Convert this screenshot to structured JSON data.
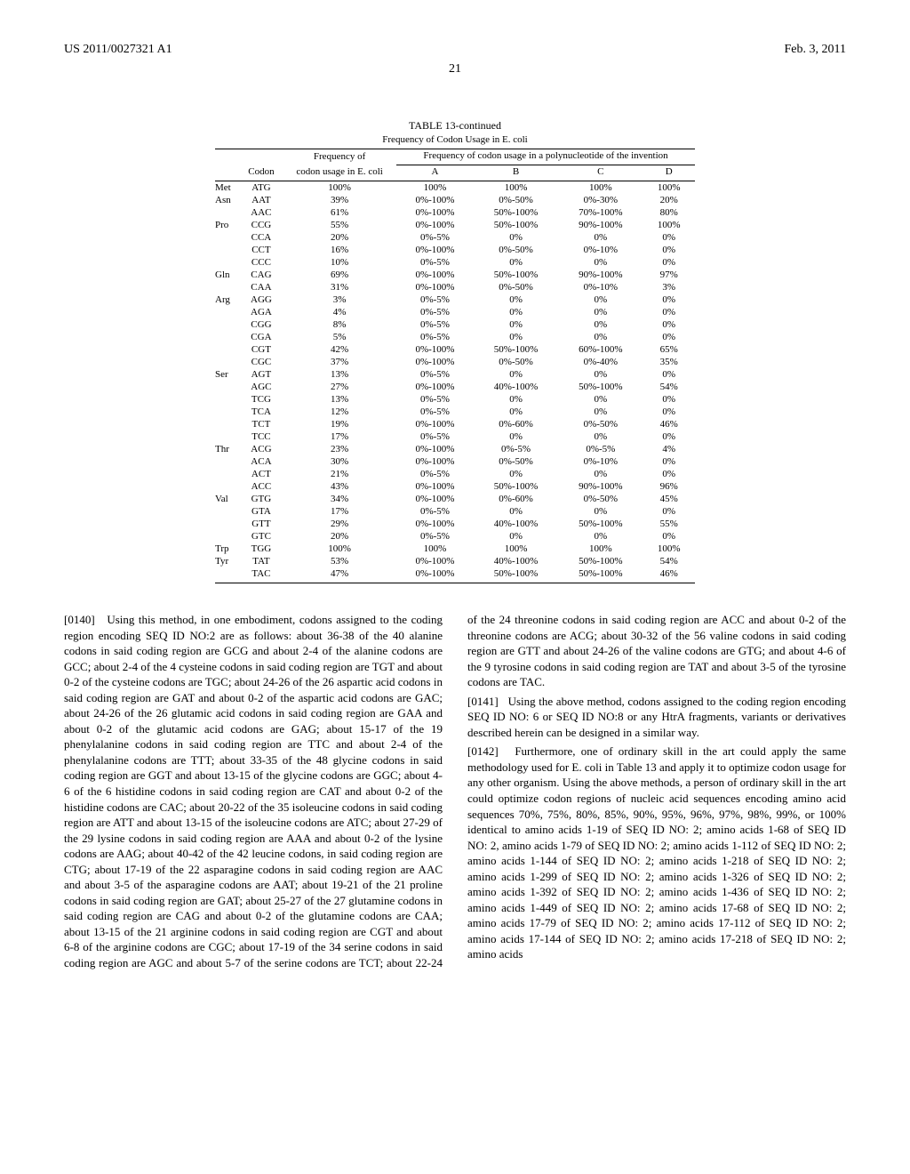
{
  "header": {
    "pub_number": "US 2011/0027321 A1",
    "date": "Feb. 3, 2011"
  },
  "page_number": "21",
  "table": {
    "caption": "TABLE 13-continued",
    "subtitle": "Frequency of Codon Usage in E. coli",
    "header1_freq_of": "Frequency of",
    "header1_pnuc": "Frequency of codon usage in a polynucleotide of the invention",
    "col_codon": "Codon",
    "col_usage": "codon usage in E. coli",
    "cols": [
      "A",
      "B",
      "C",
      "D"
    ],
    "rows": [
      {
        "aa": "Met",
        "codon": "ATG",
        "freq": "100%",
        "A": "100%",
        "B": "100%",
        "C": "100%",
        "D": "100%"
      },
      {
        "aa": "Asn",
        "codon": "AAT",
        "freq": "39%",
        "A": "0%-100%",
        "B": "0%-50%",
        "C": "0%-30%",
        "D": "20%"
      },
      {
        "aa": "",
        "codon": "AAC",
        "freq": "61%",
        "A": "0%-100%",
        "B": "50%-100%",
        "C": "70%-100%",
        "D": "80%"
      },
      {
        "aa": "Pro",
        "codon": "CCG",
        "freq": "55%",
        "A": "0%-100%",
        "B": "50%-100%",
        "C": "90%-100%",
        "D": "100%"
      },
      {
        "aa": "",
        "codon": "CCA",
        "freq": "20%",
        "A": "0%-5%",
        "B": "0%",
        "C": "0%",
        "D": "0%"
      },
      {
        "aa": "",
        "codon": "CCT",
        "freq": "16%",
        "A": "0%-100%",
        "B": "0%-50%",
        "C": "0%-10%",
        "D": "0%"
      },
      {
        "aa": "",
        "codon": "CCC",
        "freq": "10%",
        "A": "0%-5%",
        "B": "0%",
        "C": "0%",
        "D": "0%"
      },
      {
        "aa": "Gln",
        "codon": "CAG",
        "freq": "69%",
        "A": "0%-100%",
        "B": "50%-100%",
        "C": "90%-100%",
        "D": "97%"
      },
      {
        "aa": "",
        "codon": "CAA",
        "freq": "31%",
        "A": "0%-100%",
        "B": "0%-50%",
        "C": "0%-10%",
        "D": "3%"
      },
      {
        "aa": "Arg",
        "codon": "AGG",
        "freq": "3%",
        "A": "0%-5%",
        "B": "0%",
        "C": "0%",
        "D": "0%"
      },
      {
        "aa": "",
        "codon": "AGA",
        "freq": "4%",
        "A": "0%-5%",
        "B": "0%",
        "C": "0%",
        "D": "0%"
      },
      {
        "aa": "",
        "codon": "CGG",
        "freq": "8%",
        "A": "0%-5%",
        "B": "0%",
        "C": "0%",
        "D": "0%"
      },
      {
        "aa": "",
        "codon": "CGA",
        "freq": "5%",
        "A": "0%-5%",
        "B": "0%",
        "C": "0%",
        "D": "0%"
      },
      {
        "aa": "",
        "codon": "CGT",
        "freq": "42%",
        "A": "0%-100%",
        "B": "50%-100%",
        "C": "60%-100%",
        "D": "65%"
      },
      {
        "aa": "",
        "codon": "CGC",
        "freq": "37%",
        "A": "0%-100%",
        "B": "0%-50%",
        "C": "0%-40%",
        "D": "35%"
      },
      {
        "aa": "Ser",
        "codon": "AGT",
        "freq": "13%",
        "A": "0%-5%",
        "B": "0%",
        "C": "0%",
        "D": "0%"
      },
      {
        "aa": "",
        "codon": "AGC",
        "freq": "27%",
        "A": "0%-100%",
        "B": "40%-100%",
        "C": "50%-100%",
        "D": "54%"
      },
      {
        "aa": "",
        "codon": "TCG",
        "freq": "13%",
        "A": "0%-5%",
        "B": "0%",
        "C": "0%",
        "D": "0%"
      },
      {
        "aa": "",
        "codon": "TCA",
        "freq": "12%",
        "A": "0%-5%",
        "B": "0%",
        "C": "0%",
        "D": "0%"
      },
      {
        "aa": "",
        "codon": "TCT",
        "freq": "19%",
        "A": "0%-100%",
        "B": "0%-60%",
        "C": "0%-50%",
        "D": "46%"
      },
      {
        "aa": "",
        "codon": "TCC",
        "freq": "17%",
        "A": "0%-5%",
        "B": "0%",
        "C": "0%",
        "D": "0%"
      },
      {
        "aa": "Thr",
        "codon": "ACG",
        "freq": "23%",
        "A": "0%-100%",
        "B": "0%-5%",
        "C": "0%-5%",
        "D": "4%"
      },
      {
        "aa": "",
        "codon": "ACA",
        "freq": "30%",
        "A": "0%-100%",
        "B": "0%-50%",
        "C": "0%-10%",
        "D": "0%"
      },
      {
        "aa": "",
        "codon": "ACT",
        "freq": "21%",
        "A": "0%-5%",
        "B": "0%",
        "C": "0%",
        "D": "0%"
      },
      {
        "aa": "",
        "codon": "ACC",
        "freq": "43%",
        "A": "0%-100%",
        "B": "50%-100%",
        "C": "90%-100%",
        "D": "96%"
      },
      {
        "aa": "Val",
        "codon": "GTG",
        "freq": "34%",
        "A": "0%-100%",
        "B": "0%-60%",
        "C": "0%-50%",
        "D": "45%"
      },
      {
        "aa": "",
        "codon": "GTA",
        "freq": "17%",
        "A": "0%-5%",
        "B": "0%",
        "C": "0%",
        "D": "0%"
      },
      {
        "aa": "",
        "codon": "GTT",
        "freq": "29%",
        "A": "0%-100%",
        "B": "40%-100%",
        "C": "50%-100%",
        "D": "55%"
      },
      {
        "aa": "",
        "codon": "GTC",
        "freq": "20%",
        "A": "0%-5%",
        "B": "0%",
        "C": "0%",
        "D": "0%"
      },
      {
        "aa": "Trp",
        "codon": "TGG",
        "freq": "100%",
        "A": "100%",
        "B": "100%",
        "C": "100%",
        "D": "100%"
      },
      {
        "aa": "Tyr",
        "codon": "TAT",
        "freq": "53%",
        "A": "0%-100%",
        "B": "40%-100%",
        "C": "50%-100%",
        "D": "54%"
      },
      {
        "aa": "",
        "codon": "TAC",
        "freq": "47%",
        "A": "0%-100%",
        "B": "50%-100%",
        "C": "50%-100%",
        "D": "46%"
      }
    ]
  },
  "paragraphs": {
    "p0140_num": "[0140]",
    "p0140": "Using this method, in one embodiment, codons assigned to the coding region encoding SEQ ID NO:2 are as follows: about 36-38 of the 40 alanine codons in said coding region are GCG and about 2-4 of the alanine codons are GCC; about 2-4 of the 4 cysteine codons in said coding region are TGT and about 0-2 of the cysteine codons are TGC; about 24-26 of the 26 aspartic acid codons in said coding region are GAT and about 0-2 of the aspartic acid codons are GAC; about 24-26 of the 26 glutamic acid codons in said coding region are GAA and about 0-2 of the glutamic acid codons are GAG; about 15-17 of the 19 phenylalanine codons in said coding region are TTC and about 2-4 of the phenylalanine codons are TTT; about 33-35 of the 48 glycine codons in said coding region are GGT and about 13-15 of the glycine codons are GGC; about 4-6 of the 6 histidine codons in said coding region are CAT and about 0-2 of the histidine codons are CAC; about 20-22 of the 35 isoleucine codons in said coding region are ATT and about 13-15 of the isoleucine codons are ATC; about 27-29 of the 29 lysine codons in said coding region are AAA and about 0-2 of the lysine codons are AAG; about 40-42 of the 42 leucine codons, in said coding region are CTG; about 17-19 of the 22 asparagine codons in said coding region are AAC and about 3-5 of the asparagine codons are AAT; about 19-21 of the 21 proline codons in said coding region are GAT; about 25-27 of the 27 glutamine codons in said coding region are CAG and about 0-2 of the glutamine codons are CAA; about 13-15 of the 21 arginine codons in said coding region are CGT and about 6-8 of the arginine codons are CGC; about 17-19 of the 34 serine codons in said coding region are AGC and about 5-7 of the serine codons are TCT; about 22-24 of the 24 threonine codons in said coding region are ACC and about 0-2 of the threonine codons are ACG; about 30-32 of the 56 valine codons in said coding region are GTT and about 24-26 of the valine codons are GTG; and about 4-6 of the 9 tyrosine codons in said coding region are TAT and about 3-5 of the tyrosine codons are TAC.",
    "p0141_num": "[0141]",
    "p0141": "Using the above method, codons assigned to the coding region encoding SEQ ID NO: 6 or SEQ ID NO:8 or any HtrA fragments, variants or derivatives described herein can be designed in a similar way.",
    "p0142_num": "[0142]",
    "p0142": "Furthermore, one of ordinary skill in the art could apply the same methodology used for E. coli in Table 13 and apply it to optimize codon usage for any other organism. Using the above methods, a person of ordinary skill in the art could optimize codon regions of nucleic acid sequences encoding amino acid sequences 70%, 75%, 80%, 85%, 90%, 95%, 96%, 97%, 98%, 99%, or 100% identical to amino acids 1-19 of SEQ ID NO: 2; amino acids 1-68 of SEQ ID NO: 2, amino acids 1-79 of SEQ ID NO: 2; amino acids 1-112 of SEQ ID NO: 2; amino acids 1-144 of SEQ ID NO: 2; amino acids 1-218 of SEQ ID NO: 2; amino acids 1-299 of SEQ ID NO: 2; amino acids 1-326 of SEQ ID NO: 2; amino acids 1-392 of SEQ ID NO: 2; amino acids 1-436 of SEQ ID NO: 2; amino acids 1-449 of SEQ ID NO: 2; amino acids 17-68 of SEQ ID NO: 2; amino acids 17-79 of SEQ ID NO: 2; amino acids 17-112 of SEQ ID NO: 2; amino acids 17-144 of SEQ ID NO: 2; amino acids 17-218 of SEQ ID NO: 2; amino acids"
  }
}
